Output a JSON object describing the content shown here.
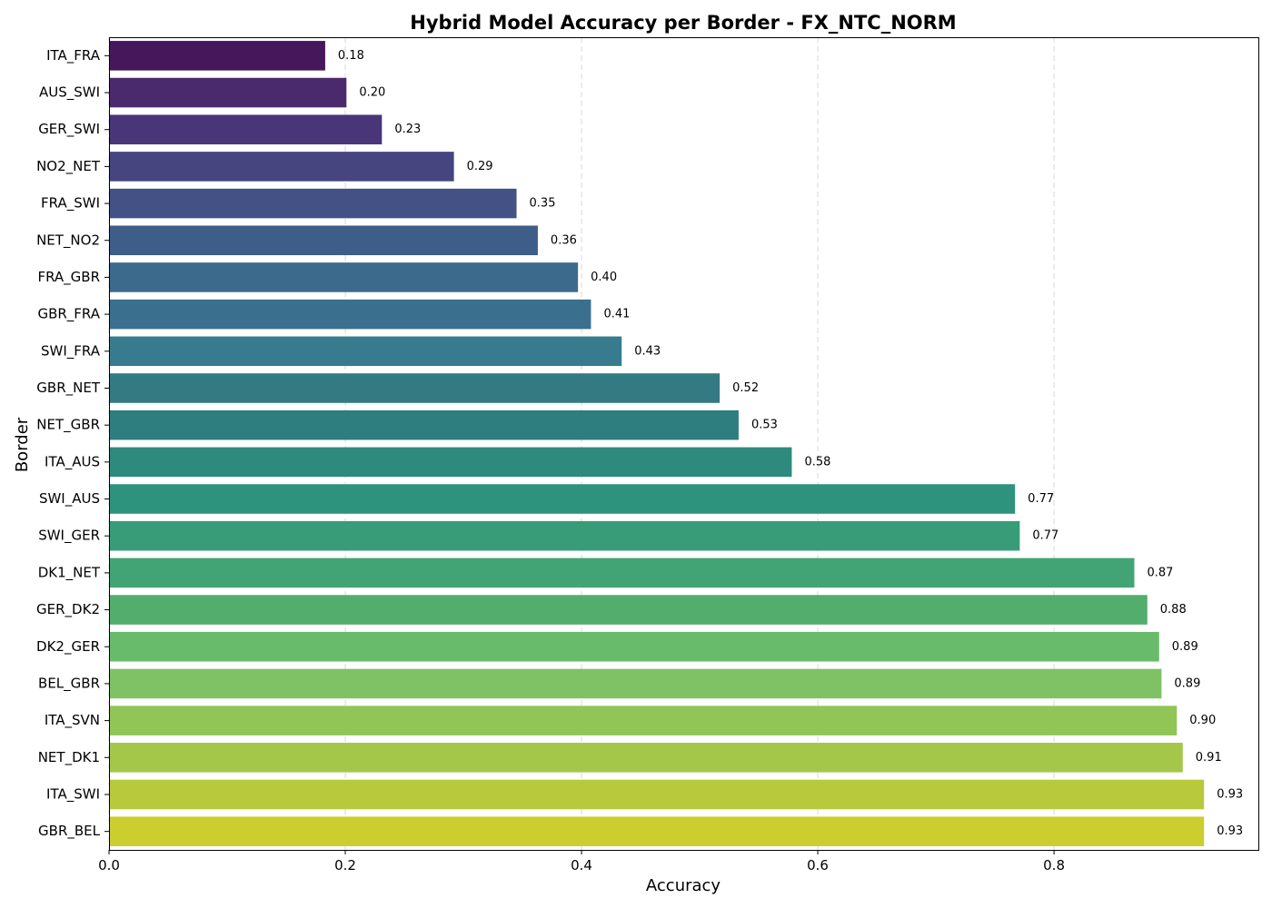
{
  "chart_data": {
    "type": "bar",
    "orientation": "horizontal",
    "title": "Hybrid Model Accuracy per Border - FX_NTC_NORM",
    "xlabel": "Accuracy",
    "ylabel": "Border",
    "xlim": [
      0,
      0.973
    ],
    "x_ticks": [
      0.0,
      0.2,
      0.4,
      0.6,
      0.8
    ],
    "x_tick_labels": [
      "0.0",
      "0.2",
      "0.4",
      "0.6",
      "0.8"
    ],
    "grid": "x-axis, dashed",
    "palette": "viridis",
    "categories": [
      "ITA_FRA",
      "AUS_SWI",
      "GER_SWI",
      "NO2_NET",
      "FRA_SWI",
      "NET_NO2",
      "FRA_GBR",
      "GBR_FRA",
      "SWI_FRA",
      "GBR_NET",
      "NET_GBR",
      "ITA_AUS",
      "SWI_AUS",
      "SWI_GER",
      "DK1_NET",
      "GER_DK2",
      "DK2_GER",
      "BEL_GBR",
      "ITA_SVN",
      "NET_DK1",
      "ITA_SWI",
      "GBR_BEL"
    ],
    "values": [
      0.183,
      0.201,
      0.231,
      0.292,
      0.345,
      0.363,
      0.397,
      0.408,
      0.434,
      0.517,
      0.533,
      0.578,
      0.767,
      0.771,
      0.868,
      0.879,
      0.889,
      0.891,
      0.904,
      0.909,
      0.927,
      0.927
    ],
    "value_labels": [
      "0.18",
      "0.20",
      "0.23",
      "0.29",
      "0.35",
      "0.36",
      "0.40",
      "0.41",
      "0.43",
      "0.52",
      "0.53",
      "0.58",
      "0.77",
      "0.77",
      "0.87",
      "0.88",
      "0.89",
      "0.89",
      "0.90",
      "0.91",
      "0.93",
      "0.93"
    ],
    "colors": [
      "#46175b",
      "#4a2a6c",
      "#483679",
      "#474580",
      "#435185",
      "#3f5d89",
      "#3c6a8d",
      "#3a708e",
      "#367c8e",
      "#337a82",
      "#2e7e7f",
      "#2e8a7d",
      "#2e937d",
      "#389c78",
      "#42a474",
      "#53ad6d",
      "#69bb6c",
      "#7ec265",
      "#91c555",
      "#a4c74a",
      "#b9c93c",
      "#cccd2f"
    ]
  }
}
